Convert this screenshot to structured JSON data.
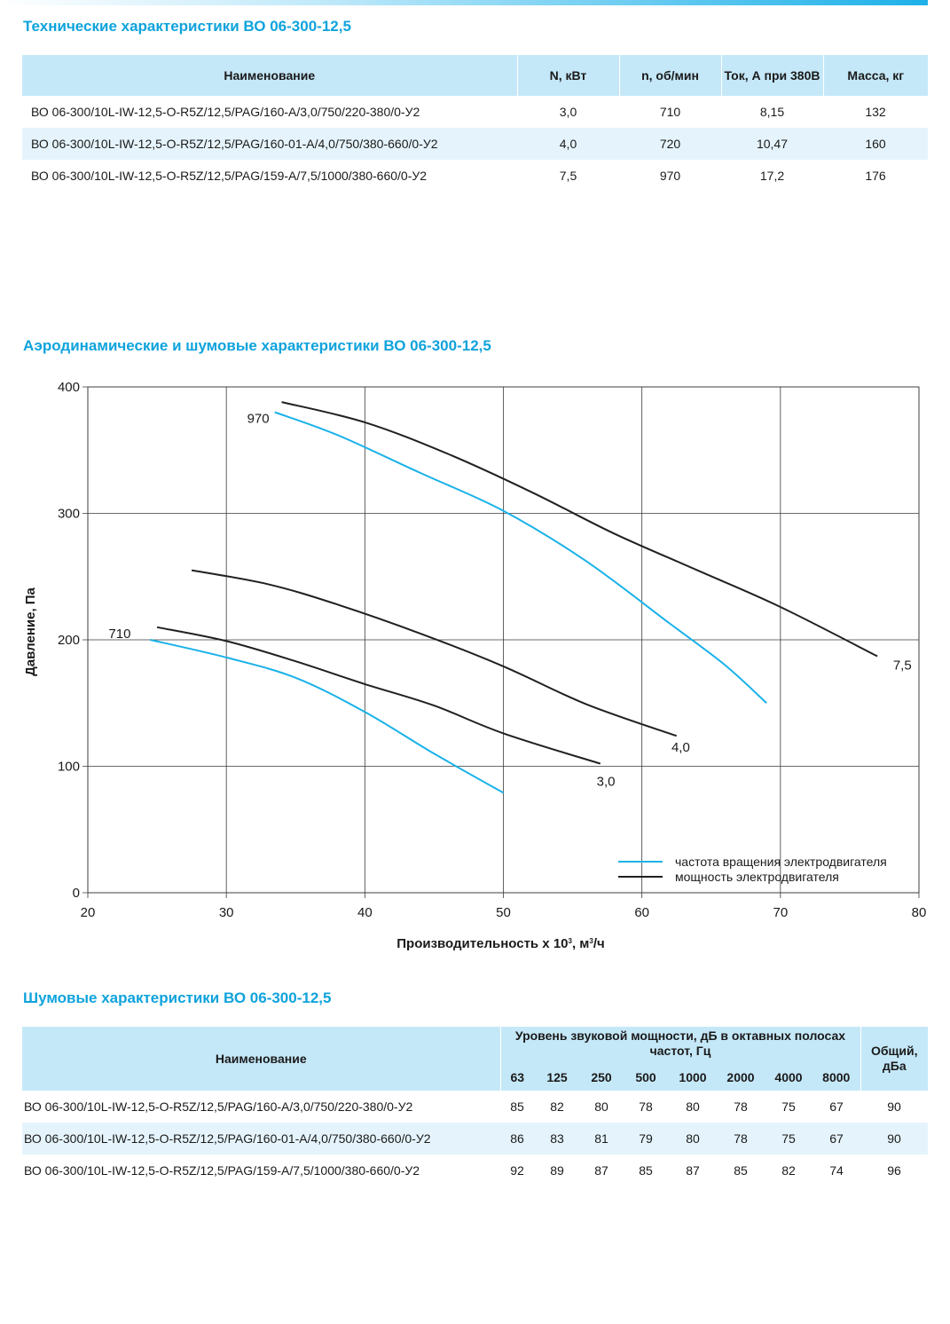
{
  "tech_section": {
    "title": "Технические характеристики ВО 06-300-12,5",
    "headers": [
      "Наименование",
      "N, кВт",
      "n, об/мин",
      "Ток, А при 380В",
      "Масса, кг"
    ],
    "rows": [
      [
        "ВО 06-300/10L-IW-12,5-O-R5Z/12,5/PAG/160-A/3,0/750/220-380/0-У2",
        "3,0",
        "710",
        "8,15",
        "132"
      ],
      [
        "ВО 06-300/10L-IW-12,5-O-R5Z/12,5/PAG/160-01-A/4,0/750/380-660/0-У2",
        "4,0",
        "720",
        "10,47",
        "160"
      ],
      [
        "ВО 06-300/10L-IW-12,5-O-R5Z/12,5/PAG/159-A/7,5/1000/380-660/0-У2",
        "7,5",
        "970",
        "17,2",
        "176"
      ]
    ]
  },
  "aero_section": {
    "title": "Аэродинамические и шумовые характеристики ВО 06-300-12,5"
  },
  "chart_data": {
    "type": "line",
    "title": "",
    "xlabel_html": "Производительность х 10<tspan dy=\"-5\" font-size=\"8\">3</tspan><tspan dy=\"5\">, м</tspan><tspan dy=\"-5\" font-size=\"8\">3</tspan><tspan dy=\"5\">/ч</tspan>",
    "ylabel": "Давление, Па",
    "xlim": [
      20,
      80
    ],
    "ylim": [
      0,
      400
    ],
    "xticks": [
      20,
      30,
      40,
      50,
      60,
      70,
      80
    ],
    "yticks": [
      0,
      100,
      200,
      300,
      400
    ],
    "grid": true,
    "legend_position": "bottom-right",
    "legend": [
      {
        "label": "частота вращения электродвигателя",
        "color": "#1ab2e8"
      },
      {
        "label": "мощность электродвигателя",
        "color": "#231f20"
      }
    ],
    "series": [
      {
        "name": "710",
        "kind": "rpm",
        "color": "#1ab2e8",
        "label_at": [
          22.3,
          205
        ],
        "points": [
          [
            24.5,
            200
          ],
          [
            30,
            186
          ],
          [
            35,
            170
          ],
          [
            40,
            143
          ],
          [
            45,
            110
          ],
          [
            50,
            79
          ]
        ]
      },
      {
        "name": "970",
        "kind": "rpm",
        "color": "#1ab2e8",
        "label_at": [
          32.3,
          375
        ],
        "points": [
          [
            33.5,
            380
          ],
          [
            38,
            362
          ],
          [
            44,
            332
          ],
          [
            50,
            302
          ],
          [
            56,
            262
          ],
          [
            62,
            213
          ],
          [
            66,
            180
          ],
          [
            69,
            150
          ]
        ]
      },
      {
        "name": "3,0",
        "kind": "power",
        "color": "#231f20",
        "label_at": [
          57.4,
          88
        ],
        "points": [
          [
            25,
            210
          ],
          [
            30,
            199
          ],
          [
            35,
            183
          ],
          [
            40,
            165
          ],
          [
            45,
            148
          ],
          [
            50,
            126
          ],
          [
            57,
            102
          ]
        ]
      },
      {
        "name": "4,0",
        "kind": "power",
        "color": "#231f20",
        "label_at": [
          62.8,
          115
        ],
        "points": [
          [
            27.5,
            255
          ],
          [
            33,
            244
          ],
          [
            38,
            228
          ],
          [
            44,
            205
          ],
          [
            50,
            179
          ],
          [
            56,
            149
          ],
          [
            62.5,
            124
          ]
        ]
      },
      {
        "name": "7,5",
        "kind": "power",
        "color": "#231f20",
        "label_at": [
          78.8,
          180
        ],
        "points": [
          [
            34,
            388
          ],
          [
            40,
            372
          ],
          [
            46,
            347
          ],
          [
            52,
            317
          ],
          [
            58,
            284
          ],
          [
            64,
            255
          ],
          [
            70,
            226
          ],
          [
            77,
            187
          ]
        ]
      }
    ]
  },
  "noise_section": {
    "title": "Шумовые характеристики ВО 06-300-12,5",
    "name_header": "Наименование",
    "group_header": "Уровень звуковой мощности, дБ в октавных полосах частот, Гц",
    "total_header": "Общий, дБа",
    "freqs": [
      "63",
      "125",
      "250",
      "500",
      "1000",
      "2000",
      "4000",
      "8000"
    ],
    "rows": [
      [
        "ВО 06-300/10L-IW-12,5-O-R5Z/12,5/PAG/160-A/3,0/750/220-380/0-У2",
        "85",
        "82",
        "80",
        "78",
        "80",
        "78",
        "75",
        "67",
        "90"
      ],
      [
        "ВО 06-300/10L-IW-12,5-O-R5Z/12,5/PAG/160-01-A/4,0/750/380-660/0-У2",
        "86",
        "83",
        "81",
        "79",
        "80",
        "78",
        "75",
        "67",
        "90"
      ],
      [
        "ВО 06-300/10L-IW-12,5-O-R5Z/12,5/PAG/159-A/7,5/1000/380-660/0-У2",
        "92",
        "89",
        "87",
        "85",
        "87",
        "85",
        "82",
        "74",
        "96"
      ]
    ]
  }
}
